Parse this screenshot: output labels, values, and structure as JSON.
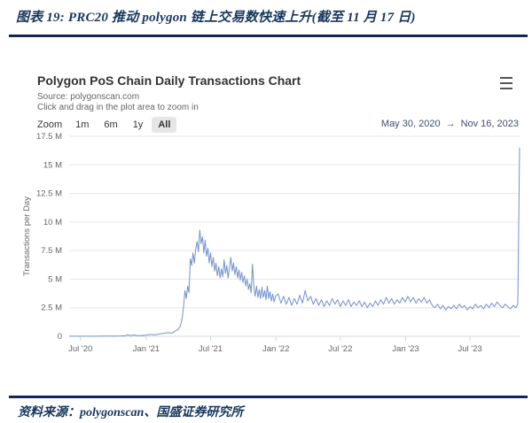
{
  "page": {
    "figure_title": "图表 19:  PRC20 推动 polygon 链上交易数快速上升(截至 11 月 17 日)",
    "source_note": "资料来源：polygonscan、国盛证券研究所"
  },
  "chart": {
    "title": "Polygon PoS Chain Daily Transactions Chart",
    "source_line": "Source:  polygonscan.com",
    "hint_line": "Click and drag in the plot area to zoom in",
    "zoom": {
      "label": "Zoom",
      "buttons": [
        "1m",
        "6m",
        "1y",
        "All"
      ],
      "active": "All"
    },
    "range": {
      "from": "May 30, 2020",
      "arrow": "→",
      "to": "Nov 16, 2023"
    }
  },
  "chart_data": {
    "type": "line",
    "title": "Polygon PoS Chain Daily Transactions Chart",
    "ylabel": "Transactions per Day",
    "ylim": [
      0,
      17.5
    ],
    "x_range_labels": [
      "May 30, 2020",
      "Nov 16, 2023"
    ],
    "grid": true,
    "legend": "none",
    "line_color": "#7291cd",
    "grid_color": "#e6e6e6",
    "axis_color": "#d2d8e2",
    "tick_color": "#666666",
    "yticks": [
      {
        "v": 0,
        "label": "0"
      },
      {
        "v": 2.5,
        "label": "2.5 M"
      },
      {
        "v": 5,
        "label": "5 M"
      },
      {
        "v": 7.5,
        "label": "7.5 M"
      },
      {
        "v": 10,
        "label": "10 M"
      },
      {
        "v": 12.5,
        "label": "12.5 M"
      },
      {
        "v": 15,
        "label": "15 M"
      },
      {
        "v": 17.5,
        "label": "17.5 M"
      }
    ],
    "xticks": [
      {
        "f": 0.025,
        "label": "Jul '20"
      },
      {
        "f": 0.171,
        "label": "Jan '21"
      },
      {
        "f": 0.314,
        "label": "Jul '21"
      },
      {
        "f": 0.459,
        "label": "Jan '22"
      },
      {
        "f": 0.602,
        "label": "Jul '22"
      },
      {
        "f": 0.747,
        "label": "Jan '23"
      },
      {
        "f": 0.89,
        "label": "Jul '23"
      }
    ],
    "points": [
      [
        0.0,
        0.01
      ],
      [
        0.02,
        0.01
      ],
      [
        0.04,
        0.01
      ],
      [
        0.06,
        0.01
      ],
      [
        0.08,
        0.02
      ],
      [
        0.1,
        0.02
      ],
      [
        0.115,
        0.03
      ],
      [
        0.125,
        0.05
      ],
      [
        0.13,
        0.14
      ],
      [
        0.135,
        0.06
      ],
      [
        0.145,
        0.12
      ],
      [
        0.15,
        0.07
      ],
      [
        0.16,
        0.06
      ],
      [
        0.17,
        0.09
      ],
      [
        0.18,
        0.16
      ],
      [
        0.19,
        0.12
      ],
      [
        0.2,
        0.2
      ],
      [
        0.21,
        0.26
      ],
      [
        0.22,
        0.32
      ],
      [
        0.228,
        0.28
      ],
      [
        0.235,
        0.45
      ],
      [
        0.242,
        0.6
      ],
      [
        0.247,
        0.9
      ],
      [
        0.251,
        1.6
      ],
      [
        0.254,
        2.6
      ],
      [
        0.257,
        4.0
      ],
      [
        0.26,
        3.3
      ],
      [
        0.263,
        4.4
      ],
      [
        0.266,
        3.8
      ],
      [
        0.269,
        6.8
      ],
      [
        0.272,
        6.2
      ],
      [
        0.275,
        7.3
      ],
      [
        0.278,
        6.4
      ],
      [
        0.281,
        7.6
      ],
      [
        0.284,
        8.3
      ],
      [
        0.287,
        7.4
      ],
      [
        0.29,
        9.3
      ],
      [
        0.293,
        8.1
      ],
      [
        0.296,
        8.7
      ],
      [
        0.299,
        7.3
      ],
      [
        0.302,
        8.4
      ],
      [
        0.305,
        7.0
      ],
      [
        0.308,
        7.7
      ],
      [
        0.311,
        6.4
      ],
      [
        0.314,
        7.3
      ],
      [
        0.317,
        6.1
      ],
      [
        0.32,
        6.9
      ],
      [
        0.323,
        5.7
      ],
      [
        0.326,
        6.4
      ],
      [
        0.329,
        5.3
      ],
      [
        0.332,
        6.1
      ],
      [
        0.335,
        5.1
      ],
      [
        0.338,
        5.9
      ],
      [
        0.341,
        5.2
      ],
      [
        0.344,
        6.7
      ],
      [
        0.347,
        5.5
      ],
      [
        0.35,
        6.2
      ],
      [
        0.353,
        5.1
      ],
      [
        0.356,
        6.0
      ],
      [
        0.359,
        6.9
      ],
      [
        0.362,
        5.7
      ],
      [
        0.365,
        6.4
      ],
      [
        0.368,
        5.4
      ],
      [
        0.371,
        6.1
      ],
      [
        0.374,
        5.1
      ],
      [
        0.377,
        5.8
      ],
      [
        0.38,
        4.9
      ],
      [
        0.383,
        5.6
      ],
      [
        0.386,
        4.7
      ],
      [
        0.389,
        5.3
      ],
      [
        0.392,
        4.4
      ],
      [
        0.395,
        5.0
      ],
      [
        0.398,
        4.1
      ],
      [
        0.401,
        4.6
      ],
      [
        0.404,
        3.8
      ],
      [
        0.407,
        6.3
      ],
      [
        0.41,
        4.3
      ],
      [
        0.413,
        3.5
      ],
      [
        0.416,
        4.4
      ],
      [
        0.419,
        3.4
      ],
      [
        0.422,
        4.1
      ],
      [
        0.425,
        3.3
      ],
      [
        0.428,
        4.3
      ],
      [
        0.431,
        3.4
      ],
      [
        0.434,
        4.0
      ],
      [
        0.437,
        3.2
      ],
      [
        0.44,
        4.4
      ],
      [
        0.443,
        3.3
      ],
      [
        0.446,
        3.9
      ],
      [
        0.449,
        3.1
      ],
      [
        0.452,
        3.7
      ],
      [
        0.455,
        3.0
      ],
      [
        0.458,
        3.5
      ],
      [
        0.464,
        3.7
      ],
      [
        0.47,
        2.9
      ],
      [
        0.476,
        3.5
      ],
      [
        0.482,
        2.8
      ],
      [
        0.488,
        3.4
      ],
      [
        0.494,
        2.7
      ],
      [
        0.5,
        3.3
      ],
      [
        0.506,
        2.8
      ],
      [
        0.512,
        3.6
      ],
      [
        0.518,
        2.9
      ],
      [
        0.524,
        4.0
      ],
      [
        0.53,
        3.1
      ],
      [
        0.536,
        3.5
      ],
      [
        0.542,
        2.8
      ],
      [
        0.548,
        3.3
      ],
      [
        0.554,
        2.7
      ],
      [
        0.56,
        3.2
      ],
      [
        0.566,
        2.6
      ],
      [
        0.572,
        3.1
      ],
      [
        0.578,
        2.7
      ],
      [
        0.584,
        3.3
      ],
      [
        0.59,
        2.8
      ],
      [
        0.596,
        3.2
      ],
      [
        0.602,
        2.6
      ],
      [
        0.608,
        3.1
      ],
      [
        0.614,
        2.7
      ],
      [
        0.62,
        3.2
      ],
      [
        0.626,
        2.6
      ],
      [
        0.632,
        3.0
      ],
      [
        0.638,
        2.7
      ],
      [
        0.644,
        3.1
      ],
      [
        0.65,
        2.6
      ],
      [
        0.656,
        3.0
      ],
      [
        0.662,
        2.5
      ],
      [
        0.668,
        2.9
      ],
      [
        0.674,
        2.6
      ],
      [
        0.68,
        3.1
      ],
      [
        0.686,
        2.7
      ],
      [
        0.692,
        3.2
      ],
      [
        0.698,
        2.8
      ],
      [
        0.704,
        3.4
      ],
      [
        0.71,
        2.9
      ],
      [
        0.716,
        3.3
      ],
      [
        0.722,
        2.8
      ],
      [
        0.728,
        3.2
      ],
      [
        0.734,
        2.9
      ],
      [
        0.74,
        3.4
      ],
      [
        0.746,
        3.0
      ],
      [
        0.752,
        3.5
      ],
      [
        0.758,
        3.0
      ],
      [
        0.764,
        3.4
      ],
      [
        0.77,
        2.9
      ],
      [
        0.776,
        3.3
      ],
      [
        0.782,
        3.0
      ],
      [
        0.788,
        3.4
      ],
      [
        0.794,
        2.9
      ],
      [
        0.8,
        3.2
      ],
      [
        0.806,
        2.7
      ],
      [
        0.812,
        2.5
      ],
      [
        0.818,
        2.8
      ],
      [
        0.824,
        2.4
      ],
      [
        0.83,
        2.7
      ],
      [
        0.836,
        2.3
      ],
      [
        0.842,
        2.6
      ],
      [
        0.848,
        2.4
      ],
      [
        0.854,
        2.7
      ],
      [
        0.86,
        2.4
      ],
      [
        0.866,
        2.8
      ],
      [
        0.872,
        2.5
      ],
      [
        0.878,
        2.7
      ],
      [
        0.884,
        2.3
      ],
      [
        0.89,
        2.6
      ],
      [
        0.896,
        2.4
      ],
      [
        0.902,
        2.8
      ],
      [
        0.908,
        2.5
      ],
      [
        0.914,
        2.7
      ],
      [
        0.92,
        2.4
      ],
      [
        0.926,
        2.8
      ],
      [
        0.932,
        2.5
      ],
      [
        0.938,
        2.9
      ],
      [
        0.944,
        2.6
      ],
      [
        0.95,
        3.0
      ],
      [
        0.956,
        2.7
      ],
      [
        0.962,
        2.5
      ],
      [
        0.968,
        2.8
      ],
      [
        0.974,
        2.6
      ],
      [
        0.98,
        2.4
      ],
      [
        0.986,
        2.7
      ],
      [
        0.992,
        2.5
      ],
      [
        0.996,
        2.8
      ],
      [
        1.0,
        16.5
      ]
    ]
  }
}
